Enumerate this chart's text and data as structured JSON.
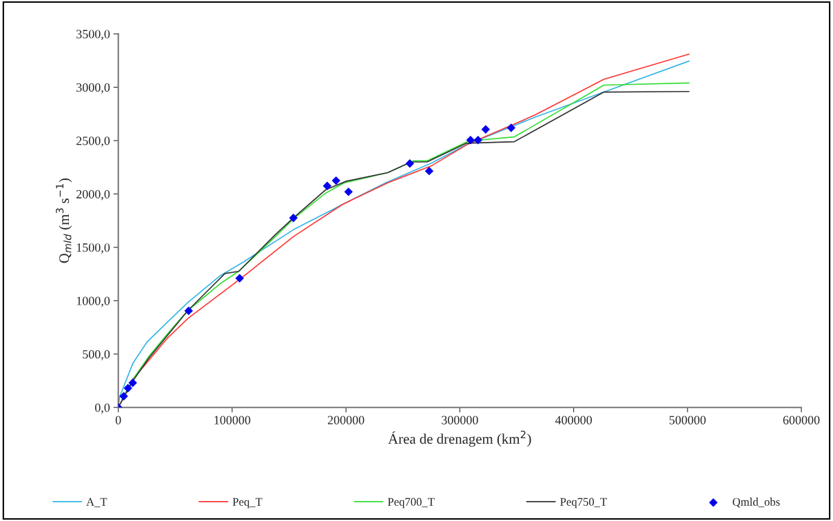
{
  "chart_data": {
    "type": "line",
    "xlabel": "Área de drenagem (km$^{2}$)",
    "ylabel": "Q$_{mld}$ (m$^{3}$ s$^{−1}$)",
    "xlim": [
      0,
      600000
    ],
    "xticks": [
      0,
      100000,
      200000,
      300000,
      400000,
      500000,
      600000
    ],
    "ylim": [
      0,
      3500
    ],
    "yticks": [
      {
        "value": 0,
        "label": "0,0"
      },
      {
        "value": 500,
        "label": "500,0"
      },
      {
        "value": 1000,
        "label": "1000,0"
      },
      {
        "value": 1500,
        "label": "1500,0"
      },
      {
        "value": 2000,
        "label": "2000,0"
      },
      {
        "value": 2500,
        "label": "2500,0"
      },
      {
        "value": 3000,
        "label": "3000,0"
      },
      {
        "value": 3500,
        "label": "3500,0"
      }
    ],
    "grid": false,
    "legend": "bottom",
    "marker": "none",
    "line_style": "solid",
    "series": [
      {
        "name": "A_T",
        "color": "#33b5e5",
        "x": [
          0,
          1200,
          12900,
          25000,
          43200,
          61300,
          89600,
          109600,
          153800,
          196600,
          234900,
          275300,
          305600,
          366100,
          426600,
          501300
        ],
        "values": [
          0,
          100,
          415,
          610,
          800,
          985,
          1235,
          1360,
          1665,
          1900,
          2105,
          2290,
          2460,
          2720,
          2955,
          3245
        ]
      },
      {
        "name": "Peq_T",
        "color": "#ff3333",
        "x": [
          0,
          12900,
          43200,
          61300,
          107800,
          153800,
          196600,
          236700,
          275300,
          307600,
          366100,
          426600,
          501300
        ],
        "values": [
          0,
          265,
          650,
          835,
          1210,
          1600,
          1900,
          2105,
          2265,
          2470,
          2740,
          3075,
          3310
        ]
      },
      {
        "name": "Peq700_T",
        "color": "#33dd33",
        "x": [
          3000,
          12900,
          27000,
          45200,
          61300,
          89600,
          105800,
          138000,
          154200,
          182400,
          198600,
          236700,
          259100,
          271200,
          307600,
          347900,
          426600,
          501300
        ],
        "values": [
          70,
          265,
          480,
          715,
          910,
          1160,
          1275,
          1600,
          1770,
          2010,
          2105,
          2200,
          2310,
          2310,
          2495,
          2535,
          3020,
          3040
        ]
      },
      {
        "name": "Peq750_T",
        "color": "#333333",
        "x": [
          0,
          12900,
          27000,
          45200,
          61300,
          93700,
          105800,
          138000,
          154200,
          182300,
          200400,
          236700,
          257300,
          271200,
          305600,
          347900,
          426600,
          501300
        ],
        "values": [
          0,
          250,
          465,
          700,
          910,
          1255,
          1275,
          1620,
          1780,
          2040,
          2120,
          2200,
          2300,
          2300,
          2475,
          2490,
          2955,
          2960
        ]
      },
      {
        "name": "Qmld_obs",
        "type": "scatter",
        "marker": "diamond",
        "color": "#0000ee",
        "x": [
          0,
          4800,
          8500,
          12700,
          61800,
          106600,
          153800,
          183500,
          191300,
          202200,
          256100,
          273100,
          309400,
          316000,
          322700,
          345100
        ],
        "values": [
          0,
          105,
          180,
          230,
          905,
          1210,
          1775,
          2075,
          2125,
          2020,
          2285,
          2215,
          2505,
          2505,
          2605,
          2620
        ]
      }
    ]
  }
}
